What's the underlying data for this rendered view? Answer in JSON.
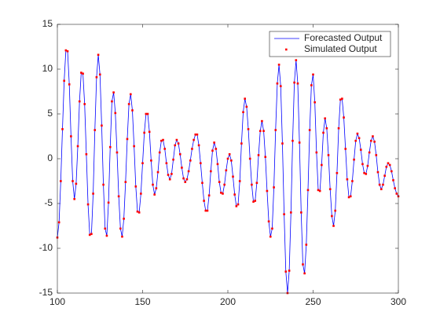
{
  "chart_data": {
    "type": "line",
    "x": [
      100,
      101,
      102,
      103,
      104,
      105,
      106,
      107,
      108,
      109,
      110,
      111,
      112,
      113,
      114,
      115,
      116,
      117,
      118,
      119,
      120,
      121,
      122,
      123,
      124,
      125,
      126,
      127,
      128,
      129,
      130,
      131,
      132,
      133,
      134,
      135,
      136,
      137,
      138,
      139,
      140,
      141,
      142,
      143,
      144,
      145,
      146,
      147,
      148,
      149,
      150,
      151,
      152,
      153,
      154,
      155,
      156,
      157,
      158,
      159,
      160,
      161,
      162,
      163,
      164,
      165,
      166,
      167,
      168,
      169,
      170,
      171,
      172,
      173,
      174,
      175,
      176,
      177,
      178,
      179,
      180,
      181,
      182,
      183,
      184,
      185,
      186,
      187,
      188,
      189,
      190,
      191,
      192,
      193,
      194,
      195,
      196,
      197,
      198,
      199,
      200,
      201,
      202,
      203,
      204,
      205,
      206,
      207,
      208,
      209,
      210,
      211,
      212,
      213,
      214,
      215,
      216,
      217,
      218,
      219,
      220,
      221,
      222,
      223,
      224,
      225,
      226,
      227,
      228,
      229,
      230,
      231,
      232,
      233,
      234,
      235,
      236,
      237,
      238,
      239,
      240,
      241,
      242,
      243,
      244,
      245,
      246,
      247,
      248,
      249,
      250,
      251,
      252,
      253,
      254,
      255,
      256,
      257,
      258,
      259,
      260,
      261,
      262,
      263,
      264,
      265,
      266,
      267,
      268,
      269,
      270,
      271,
      272,
      273,
      274,
      275,
      276,
      277,
      278,
      279,
      280,
      281,
      282,
      283,
      284,
      285,
      286,
      287,
      288,
      289,
      290,
      291,
      292,
      293,
      294,
      295,
      296,
      297,
      298,
      299,
      300
    ],
    "series": [
      {
        "name": "Forecasted Output",
        "color": "#0000ff",
        "style": "line",
        "values": [
          -8.8,
          -7.1,
          -2.5,
          3.3,
          8.7,
          12.1,
          12.0,
          8.3,
          2.5,
          -2.5,
          -4.5,
          -2.8,
          1.4,
          6.4,
          9.6,
          9.5,
          6.1,
          0.5,
          -5.1,
          -8.5,
          -8.4,
          -3.9,
          3.2,
          9.1,
          11.6,
          9.4,
          3.7,
          -2.9,
          -7.8,
          -8.6,
          -4.9,
          1.3,
          6.4,
          7.4,
          5.1,
          0.7,
          -4.2,
          -7.8,
          -8.7,
          -6.7,
          -2.6,
          2.2,
          6.1,
          7.2,
          5.4,
          1.4,
          -3.1,
          -5.9,
          -6.0,
          -3.9,
          -0.5,
          2.9,
          5.0,
          5.0,
          3.0,
          -0.2,
          -2.9,
          -4.0,
          -3.3,
          -1.5,
          0.7,
          2.0,
          2.1,
          1.1,
          -0.5,
          -1.8,
          -2.3,
          -1.7,
          -0.1,
          1.5,
          2.1,
          1.7,
          0.5,
          -1.0,
          -2.2,
          -2.6,
          -2.3,
          -1.4,
          -0.2,
          1.1,
          2.1,
          2.7,
          2.7,
          1.5,
          -0.5,
          -2.7,
          -4.7,
          -5.8,
          -5.8,
          -4.1,
          -1.4,
          0.9,
          1.8,
          1.1,
          -0.6,
          -2.6,
          -3.8,
          -3.9,
          -2.9,
          -1.3,
          0,
          0.5,
          -0.2,
          -2.0,
          -4.0,
          -5.3,
          -5.1,
          -2.5,
          1.7,
          5.2,
          6.7,
          5.8,
          3.3,
          0,
          -2.9,
          -4.8,
          -4.7,
          -2.7,
          0.4,
          3.1,
          4.2,
          3.1,
          0.2,
          -3.6,
          -7.0,
          -8.7,
          -7.8,
          -3.2,
          3.2,
          8.4,
          10.5,
          8.1,
          1.7,
          -6.2,
          -12.6,
          -15,
          -12.5,
          -6.0,
          2.0,
          8.5,
          11,
          8.4,
          1.8,
          -6.0,
          -11.8,
          -12.8,
          -9.6,
          -3.5,
          3.2,
          8.2,
          9.4,
          6.3,
          0.7,
          -3.5,
          -3.6,
          -0.7,
          2.9,
          4.5,
          3.4,
          0.4,
          -3.4,
          -6.4,
          -7.5,
          -5.8,
          -1.6,
          3.4,
          6.6,
          6.7,
          4.6,
          1.1,
          -2.3,
          -4.3,
          -4.2,
          -2.5,
          -0.1,
          2.0,
          2.8,
          2.3,
          1.0,
          -0.6,
          -1.6,
          -1.7,
          -0.8,
          0.7,
          2.0,
          2.5,
          1.9,
          0.4,
          -1.5,
          -2.9,
          -3.4,
          -2.9,
          -1.9,
          -0.9,
          -0.5,
          -0.7,
          -1.4,
          -2.4,
          -3.3,
          -3.9,
          -4.2
        ]
      },
      {
        "name": "Simulated Output",
        "color": "#ff0000",
        "style": "dots",
        "values": [
          -8.8,
          -7.1,
          -2.5,
          3.3,
          8.7,
          12.1,
          12.0,
          8.3,
          2.5,
          -2.5,
          -4.5,
          -2.8,
          1.4,
          6.4,
          9.6,
          9.5,
          6.1,
          0.5,
          -5.1,
          -8.5,
          -8.4,
          -3.9,
          3.2,
          9.1,
          11.6,
          9.4,
          3.7,
          -2.9,
          -7.8,
          -8.6,
          -4.9,
          1.3,
          6.4,
          7.4,
          5.1,
          0.7,
          -4.2,
          -7.8,
          -8.7,
          -6.7,
          -2.6,
          2.2,
          6.1,
          7.2,
          5.4,
          1.4,
          -3.1,
          -5.9,
          -6.0,
          -3.9,
          -0.5,
          2.9,
          5.0,
          5.0,
          3.0,
          -0.2,
          -2.9,
          -4.0,
          -3.3,
          -1.5,
          0.7,
          2.0,
          2.1,
          1.1,
          -0.5,
          -1.8,
          -2.3,
          -1.7,
          -0.1,
          1.5,
          2.1,
          1.7,
          0.5,
          -1.0,
          -2.2,
          -2.6,
          -2.3,
          -1.4,
          -0.2,
          1.1,
          2.1,
          2.7,
          2.7,
          1.5,
          -0.5,
          -2.7,
          -4.7,
          -5.8,
          -5.8,
          -4.1,
          -1.4,
          0.9,
          1.8,
          1.1,
          -0.6,
          -2.6,
          -3.8,
          -3.9,
          -2.9,
          -1.3,
          0,
          0.5,
          -0.2,
          -2.0,
          -4.0,
          -5.3,
          -5.1,
          -2.5,
          1.7,
          5.2,
          6.7,
          5.8,
          3.3,
          0,
          -2.9,
          -4.8,
          -4.7,
          -2.7,
          0.4,
          3.1,
          4.2,
          3.1,
          0.2,
          -3.6,
          -7.0,
          -8.7,
          -7.8,
          -3.2,
          3.2,
          8.4,
          10.5,
          8.1,
          1.7,
          -6.2,
          -12.6,
          -15,
          -12.5,
          -6.0,
          2.0,
          8.5,
          11,
          8.4,
          1.8,
          -6.0,
          -11.8,
          -12.8,
          -9.6,
          -3.5,
          3.2,
          8.2,
          9.4,
          6.3,
          0.7,
          -3.5,
          -3.6,
          -0.7,
          2.9,
          4.5,
          3.4,
          0.4,
          -3.4,
          -6.4,
          -7.5,
          -5.8,
          -1.6,
          3.4,
          6.6,
          6.7,
          4.6,
          1.1,
          -2.3,
          -4.3,
          -4.2,
          -2.5,
          -0.1,
          2.0,
          2.8,
          2.3,
          1.0,
          -0.6,
          -1.6,
          -1.7,
          -0.8,
          0.7,
          2.0,
          2.5,
          1.9,
          0.4,
          -1.5,
          -2.9,
          -3.4,
          -2.9,
          -1.9,
          -0.9,
          -0.5,
          -0.7,
          -1.4,
          -2.4,
          -3.3,
          -3.9,
          -4.2
        ]
      }
    ],
    "xlim": [
      100,
      300
    ],
    "xticks": [
      100,
      150,
      200,
      250,
      300
    ],
    "ylim": [
      -15,
      15
    ],
    "yticks": [
      -15,
      -10,
      -5,
      0,
      5,
      10,
      15
    ],
    "grid": false,
    "legend": "northeast"
  }
}
